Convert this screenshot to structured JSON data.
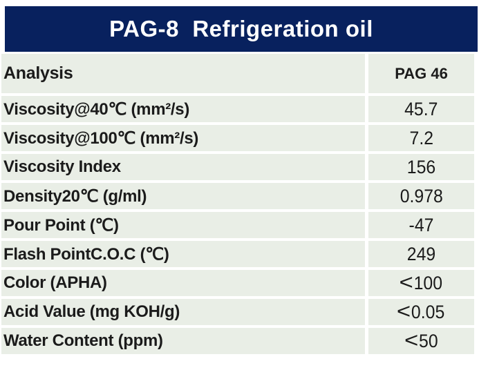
{
  "title": "PAG-8  Refrigeration oil",
  "table": {
    "columns": [
      "Analysis",
      "PAG 46"
    ],
    "rows": [
      {
        "label": "Viscosity@40℃ (mm²/s)",
        "value": "45.7"
      },
      {
        "label": "Viscosity@100℃ (mm²/s)",
        "value": "7.2"
      },
      {
        "label": "Viscosity Index",
        "value": "156"
      },
      {
        "label": "Density20℃ (g/ml)",
        "value": "0.978"
      },
      {
        "label": "Pour Point (℃)",
        "value": "-47"
      },
      {
        "label": "Flash PointC.O.C (℃)",
        "value": "249"
      },
      {
        "label": "Color (APHA)",
        "value": "<100"
      },
      {
        "label": "Acid Value (mg KOH/g)",
        "value": "<0.05"
      },
      {
        "label": "Water Content (ppm)",
        "value": "<50"
      }
    ]
  },
  "colors": {
    "title_bg": "#08215e",
    "title_text": "#ffffff",
    "row_bg": "#e9eee6",
    "row_separator": "#ffffff",
    "text": "#1b1b1b",
    "page_bg": "#ffffff"
  }
}
